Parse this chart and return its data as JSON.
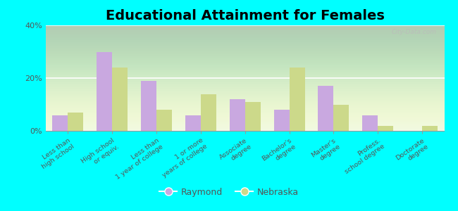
{
  "title": "Educational Attainment for Females",
  "categories": [
    "Less than\nhigh school",
    "High school\nor equiv.",
    "Less than\n1 year of college",
    "1 or more\nyears of college",
    "Associate\ndegree",
    "Bachelor's\ndegree",
    "Master's\ndegree",
    "Profess.\nschool degree",
    "Doctorate\ndegree"
  ],
  "raymond_values": [
    6,
    30,
    19,
    6,
    12,
    8,
    17,
    6,
    0
  ],
  "nebraska_values": [
    7,
    24,
    8,
    14,
    11,
    24,
    10,
    2,
    2
  ],
  "raymond_color": "#c9a8e0",
  "nebraska_color": "#ccd98a",
  "background_top": "#f0f8e8",
  "background_bottom": "#e8f5d0",
  "outer_background": "#00ffff",
  "ylim": [
    0,
    40
  ],
  "yticks": [
    0,
    20,
    40
  ],
  "ytick_labels": [
    "0%",
    "20%",
    "40%"
  ],
  "bar_width": 0.35,
  "legend_labels": [
    "Raymond",
    "Nebraska"
  ],
  "title_fontsize": 14,
  "watermark": "City-Data.com"
}
